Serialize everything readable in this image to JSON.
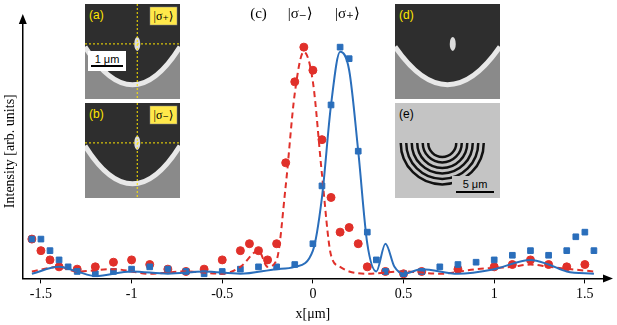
{
  "chart_data": {
    "type": "scatter",
    "x_label": "x[μm]",
    "y_label": "Intensity [arb. units]",
    "xlim": [
      -1.6,
      1.6
    ],
    "xticks": [
      -1.5,
      -1,
      -0.5,
      0,
      0.5,
      1,
      1.5
    ],
    "ylim": [
      0,
      1.1
    ],
    "grid": false,
    "tick_labels": "x",
    "annotations": [
      {
        "text": "(c)",
        "x": -0.3
      },
      {
        "text": "|σ₋⟩",
        "x": -0.07
      },
      {
        "text": "|σ₊⟩",
        "x": 0.19
      }
    ],
    "series": [
      {
        "type": "line",
        "line_style": "solid",
        "color": "#2a6ebb",
        "x": [
          -1.55,
          -1.4,
          -1.3,
          -1.2,
          -1.0,
          -0.8,
          -0.6,
          -0.4,
          -0.2,
          -0.1,
          0,
          0.05,
          0.1,
          0.15,
          0.2,
          0.25,
          0.3,
          0.35,
          0.4,
          0.45,
          0.5,
          0.6,
          0.8,
          1.0,
          1.2,
          1.3,
          1.4,
          1.55
        ],
        "values": [
          0.02,
          0.05,
          0.03,
          0.01,
          0.03,
          0.02,
          0.03,
          0.02,
          0.04,
          0.05,
          0.12,
          0.35,
          0.75,
          0.98,
          0.9,
          0.55,
          0.15,
          0.03,
          0.15,
          0.05,
          0.02,
          0.04,
          0.02,
          0.04,
          0.08,
          0.06,
          0.03,
          0.02
        ]
      },
      {
        "type": "line",
        "line_style": "dashed",
        "color": "#e0302a",
        "x": [
          -1.55,
          -1.4,
          -1.3,
          -1.1,
          -0.9,
          -0.7,
          -0.5,
          -0.4,
          -0.3,
          -0.25,
          -0.2,
          -0.15,
          -0.1,
          -0.05,
          0,
          0.05,
          0.1,
          0.15,
          0.2,
          0.3,
          0.5,
          0.7,
          0.9,
          1.1,
          1.2,
          1.3,
          1.55
        ],
        "values": [
          0.03,
          0.05,
          0.03,
          0.04,
          0.02,
          0.03,
          0.02,
          0.05,
          0.12,
          0.05,
          0.08,
          0.4,
          0.8,
          0.98,
          0.85,
          0.45,
          0.1,
          0.05,
          0.03,
          0.02,
          0.03,
          0.02,
          0.04,
          0.05,
          0.06,
          0.05,
          0.03
        ]
      },
      {
        "type": "scatter",
        "marker": "square",
        "color": "#2a6ebb",
        "x": [
          -1.55,
          -1.5,
          -1.45,
          -1.4,
          -1.35,
          -1.3,
          -1.2,
          -1.1,
          -1.0,
          -0.9,
          -0.8,
          -0.7,
          -0.6,
          -0.5,
          -0.4,
          -0.3,
          -0.2,
          -0.1,
          0,
          0.05,
          0.1,
          0.15,
          0.2,
          0.25,
          0.3,
          0.35,
          0.4,
          0.5,
          0.6,
          0.7,
          0.8,
          0.9,
          1.0,
          1.1,
          1.2,
          1.3,
          1.4,
          1.45,
          1.5,
          1.55
        ],
        "values": [
          0.17,
          0.17,
          0.12,
          0.08,
          0.05,
          0.03,
          0.02,
          0.03,
          0.04,
          0.05,
          0.04,
          0.03,
          0.02,
          0.03,
          0.04,
          0.05,
          0.05,
          0.06,
          0.15,
          0.4,
          0.75,
          1.0,
          0.95,
          0.55,
          0.2,
          0.08,
          0.03,
          0.02,
          0.03,
          0.05,
          0.06,
          0.07,
          0.08,
          0.1,
          0.12,
          0.1,
          0.12,
          0.18,
          0.2,
          0.12
        ]
      },
      {
        "type": "scatter",
        "marker": "circle",
        "color": "#e0302a",
        "x": [
          -1.55,
          -1.5,
          -1.45,
          -1.4,
          -1.3,
          -1.2,
          -1.1,
          -1.0,
          -0.9,
          -0.8,
          -0.7,
          -0.6,
          -0.5,
          -0.4,
          -0.35,
          -0.3,
          -0.25,
          -0.2,
          -0.15,
          -0.1,
          -0.05,
          0,
          0.05,
          0.1,
          0.15,
          0.2,
          0.25,
          0.3,
          0.4,
          0.5,
          0.6,
          0.8,
          1.0,
          1.1,
          1.2,
          1.3,
          1.4,
          1.5
        ],
        "values": [
          0.17,
          0.12,
          0.08,
          0.05,
          0.04,
          0.05,
          0.07,
          0.08,
          0.06,
          0.04,
          0.03,
          0.04,
          0.08,
          0.12,
          0.15,
          0.12,
          0.08,
          0.15,
          0.5,
          0.85,
          1.0,
          0.9,
          0.6,
          0.35,
          0.2,
          0.22,
          0.15,
          0.05,
          0.03,
          0.02,
          0.03,
          0.04,
          0.05,
          0.06,
          0.08,
          0.06,
          0.05,
          0.06
        ]
      }
    ]
  },
  "insets": [
    {
      "label": "(a)",
      "state": "|σ₊⟩",
      "scale_bar": "1 μm"
    },
    {
      "label": "(b)",
      "state": "|σ₋⟩"
    },
    {
      "label": "(d)"
    },
    {
      "label": "(e)",
      "scale_bar": "5 μm"
    }
  ]
}
